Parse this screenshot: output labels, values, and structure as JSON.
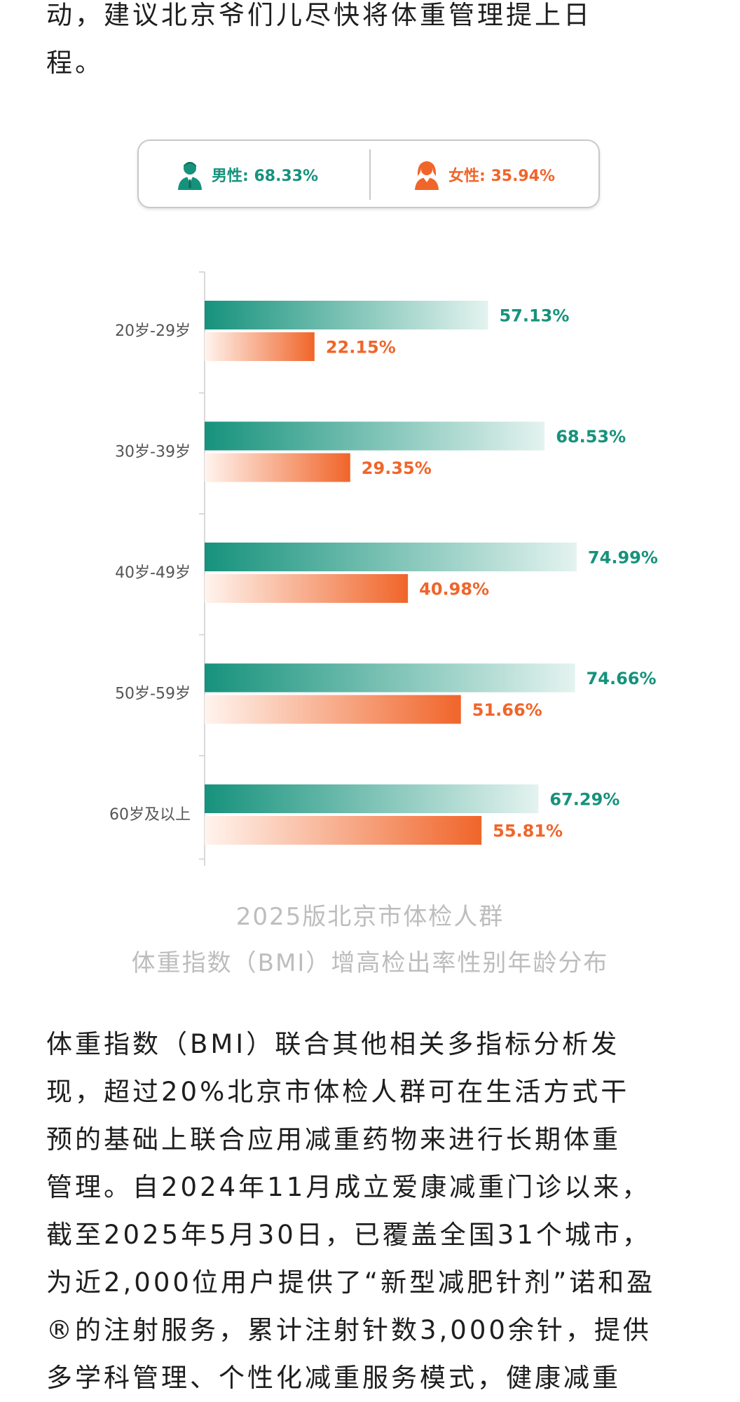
{
  "article": {
    "top_lines": [
      "动，建议北京爷们儿尽快将体重管理提上日",
      "程。"
    ],
    "bottom_lines": [
      "体重指数（BMI）联合其他相关多指标分析发",
      "现，超过20%北京市体检人群可在生活方式干",
      "预的基础上联合应用减重药物来进行长期体重",
      "管理。自2024年11月成立爱康减重门诊以来，",
      "截至2025年5月30日，已覆盖全国31个城市，",
      "为近2,000位用户提供了“新型减肥针剂”诺和盈",
      "®的注射服务，累计注射针数3,000余针，提供",
      "多学科管理、个性化减重服务模式，健康减重"
    ]
  },
  "legend": {
    "male_label": "男性: 68.33%",
    "female_label": "女性: 35.94%"
  },
  "caption": {
    "line1": "2025版北京市体检人群",
    "line2": "体重指数（BMI）增高检出率性别年龄分布"
  },
  "colors": {
    "male": "#16927c",
    "male_light": "#e4f3ef",
    "female": "#f0652a",
    "female_light": "#fff4ee",
    "axis": "#d9d9d9"
  },
  "chart_data": {
    "type": "bar",
    "orientation": "horizontal",
    "title": "2025版北京市体检人群 体重指数（BMI）增高检出率性别年龄分布",
    "categories": [
      "20岁-29岁",
      "30岁-39岁",
      "40岁-49岁",
      "50岁-59岁",
      "60岁及以上"
    ],
    "series": [
      {
        "name": "男性",
        "values": [
          57.13,
          68.53,
          74.99,
          74.66,
          67.29
        ],
        "labels": [
          "57.13%",
          "68.53%",
          "74.99%",
          "74.66%",
          "67.29%"
        ]
      },
      {
        "name": "女性",
        "values": [
          22.15,
          29.35,
          40.98,
          51.66,
          55.81
        ],
        "labels": [
          "22.15%",
          "29.35%",
          "40.98%",
          "51.66%",
          "55.81%"
        ]
      }
    ],
    "xlim": [
      0,
      100
    ],
    "xlabel": "",
    "ylabel": "",
    "grid": false
  }
}
